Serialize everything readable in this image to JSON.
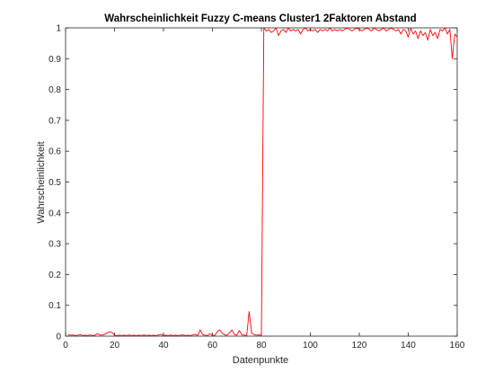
{
  "chart_data": {
    "type": "line",
    "title": "Wahrscheinlichkeit Fuzzy C-means Cluster1 2Faktoren Abstand",
    "xlabel": "Datenpunkte",
    "ylabel": "Wahrscheinlichkeit",
    "xlim": [
      0,
      160
    ],
    "ylim": [
      0,
      1
    ],
    "xticks": [
      0,
      20,
      40,
      60,
      80,
      100,
      120,
      140,
      160
    ],
    "xtick_labels": [
      "0",
      "20",
      "40",
      "60",
      "80",
      "100",
      "120",
      "140",
      "160"
    ],
    "yticks": [
      0,
      0.1,
      0.2,
      0.3,
      0.4,
      0.5,
      0.6,
      0.7,
      0.8,
      0.9,
      1
    ],
    "ytick_labels": [
      "0",
      "0.1",
      "0.2",
      "0.3",
      "0.4",
      "0.5",
      "0.6",
      "0.7",
      "0.8",
      "0.9",
      "1"
    ],
    "grid": false,
    "colors": {
      "series": "#ff0000",
      "axes": "#262626",
      "background": "#ffffff"
    },
    "series": [
      {
        "x": [
          1,
          2,
          3,
          4,
          5,
          6,
          7,
          8,
          9,
          10,
          11,
          12,
          13,
          14,
          15,
          16,
          17,
          18,
          19,
          20,
          21,
          22,
          23,
          24,
          25,
          26,
          27,
          28,
          29,
          30,
          31,
          32,
          33,
          34,
          35,
          36,
          37,
          38,
          39,
          40,
          41,
          42,
          43,
          44,
          45,
          46,
          47,
          48,
          49,
          50,
          51,
          52,
          53,
          54,
          55,
          56,
          57,
          58,
          59,
          60,
          61,
          62,
          63,
          64,
          65,
          66,
          67,
          68,
          69,
          70,
          71,
          72,
          73,
          74,
          75,
          76,
          77,
          78,
          79,
          80,
          81,
          82,
          83,
          84,
          85,
          86,
          87,
          88,
          89,
          90,
          91,
          92,
          93,
          94,
          95,
          96,
          97,
          98,
          99,
          100,
          101,
          102,
          103,
          104,
          105,
          106,
          107,
          108,
          109,
          110,
          111,
          112,
          113,
          114,
          115,
          116,
          117,
          118,
          119,
          120,
          121,
          122,
          123,
          124,
          125,
          126,
          127,
          128,
          129,
          130,
          131,
          132,
          133,
          134,
          135,
          136,
          137,
          138,
          139,
          140,
          141,
          142,
          143,
          144,
          145,
          146,
          147,
          148,
          149,
          150,
          151,
          152,
          153,
          154,
          155,
          156,
          157,
          158,
          159,
          160
        ],
        "y": [
          0.005,
          0.003,
          0.004,
          0.002,
          0.003,
          0.005,
          0.002,
          0.003,
          0.002,
          0.004,
          0.002,
          0.003,
          0.008,
          0.004,
          0.003,
          0.006,
          0.01,
          0.015,
          0.012,
          0.003,
          0.002,
          0.003,
          0.002,
          0.003,
          0.002,
          0.004,
          0.002,
          0.003,
          0.002,
          0.003,
          0.002,
          0.004,
          0.002,
          0.003,
          0.002,
          0.003,
          0.002,
          0.004,
          0.006,
          0.002,
          0.003,
          0.002,
          0.004,
          0.002,
          0.003,
          0.002,
          0.003,
          0.004,
          0.002,
          0.003,
          0.002,
          0.004,
          0.006,
          0.002,
          0.02,
          0.005,
          0.003,
          0.002,
          0.008,
          0.003,
          0.002,
          0.015,
          0.02,
          0.01,
          0.004,
          0.003,
          0.012,
          0.02,
          0.005,
          0.003,
          0.018,
          0.005,
          0.003,
          0.002,
          0.08,
          0.01,
          0.005,
          0.003,
          0.004,
          0.003,
          1.0,
          0.99,
          0.995,
          0.985,
          0.99,
          1.0,
          0.975,
          0.99,
          0.995,
          0.985,
          1.0,
          0.99,
          0.995,
          0.99,
          0.995,
          0.98,
          0.995,
          1.0,
          0.99,
          0.995,
          0.99,
          0.995,
          0.985,
          0.995,
          0.99,
          0.995,
          0.99,
          1.0,
          0.99,
          0.995,
          0.99,
          0.995,
          0.99,
          0.995,
          1.0,
          0.995,
          0.99,
          0.995,
          1.0,
          0.995,
          0.99,
          0.995,
          1.0,
          0.995,
          0.99,
          1.0,
          0.995,
          0.99,
          0.995,
          1.0,
          0.99,
          0.995,
          1.0,
          0.995,
          0.99,
          0.995,
          0.98,
          0.995,
          0.99,
          0.97,
          1.0,
          0.98,
          0.99,
          0.965,
          0.99,
          0.975,
          0.985,
          0.96,
          0.995,
          0.975,
          0.985,
          0.965,
          0.995,
          0.99,
          1.0,
          0.98,
          0.995,
          0.9,
          0.98,
          0.97
        ]
      }
    ]
  }
}
